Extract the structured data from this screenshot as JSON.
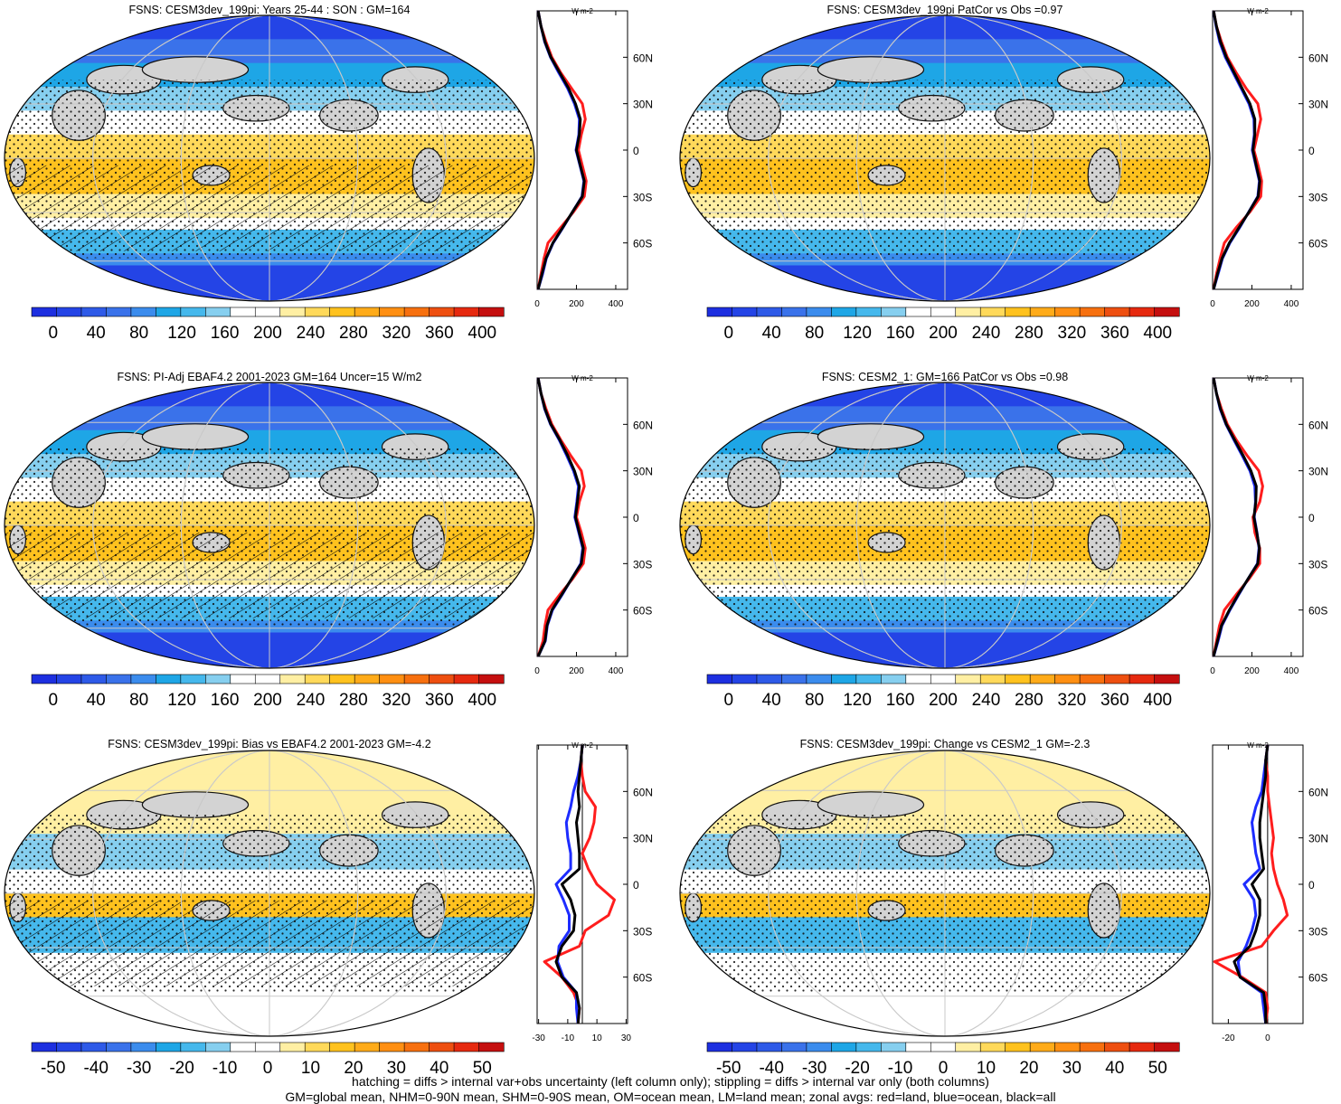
{
  "legend_colors": [
    "#1d2fe0",
    "#2444e6",
    "#2e5ae8",
    "#3a72ea",
    "#3b8ced",
    "#1ea6e6",
    "#45b8ec",
    "#86cfef",
    "#ffffff",
    "#ffffff",
    "#ffefa3",
    "#ffd95a",
    "#ffc21e",
    "#ffab19",
    "#ff8f12",
    "#f7700f",
    "#ee4f10",
    "#e6290f",
    "#c50f0f"
  ],
  "footer": {
    "line1": "hatching = diffs > internal var+obs uncertainty (left column only); stippling = diffs > internal var only (both columns)",
    "line2": "GM=global mean, NHM=0-90N mean, SHM=0-90S mean, OM=ocean mean, LM=land mean; zonal avgs: red=land, blue=ocean, black=all"
  },
  "chart_data": [
    {
      "type": "heatmap",
      "title": "FSNS: CESM3dev_199pi: Years 25-44 : SON : GM=164",
      "colorbar_ticks": [
        "0",
        "40",
        "80",
        "120",
        "160",
        "200",
        "240",
        "280",
        "320",
        "360",
        "400"
      ],
      "colorbar_range": [
        -20,
        420
      ],
      "hatching": true,
      "zonal_profile": {
        "unit_label": "W m-2",
        "xlim": [
          0,
          460
        ],
        "xticks": [
          "0",
          "200",
          "400"
        ],
        "lat_ticks": [
          "60N",
          "30N",
          "0",
          "30S",
          "60S"
        ],
        "lat": [
          -90,
          -80,
          -70,
          -60,
          -50,
          -40,
          -30,
          -20,
          -10,
          0,
          10,
          20,
          30,
          40,
          50,
          60,
          70,
          80,
          90
        ],
        "all": [
          5,
          25,
          45,
          80,
          130,
          180,
          230,
          240,
          220,
          200,
          215,
          220,
          195,
          160,
          115,
          70,
          40,
          20,
          5
        ],
        "land": [
          5,
          20,
          35,
          55,
          120,
          185,
          240,
          250,
          230,
          210,
          225,
          245,
          230,
          175,
          120,
          75,
          45,
          20,
          5
        ],
        "ocean": [
          5,
          28,
          47,
          82,
          132,
          180,
          228,
          238,
          218,
          198,
          212,
          215,
          190,
          155,
          110,
          68,
          38,
          20,
          5
        ]
      }
    },
    {
      "type": "heatmap",
      "title": "FSNS: CESM3dev_199pi PatCor vs Obs =0.97",
      "colorbar_ticks": [
        "0",
        "40",
        "80",
        "120",
        "160",
        "200",
        "240",
        "280",
        "320",
        "360",
        "400"
      ],
      "colorbar_range": [
        -20,
        420
      ],
      "hatching": false,
      "zonal_profile": {
        "unit_label": "W m-2",
        "xlim": [
          0,
          460
        ],
        "xticks": [
          "0",
          "200",
          "400"
        ],
        "lat_ticks": [
          "60N",
          "30N",
          "0",
          "30S",
          "60S"
        ],
        "lat": [
          -90,
          -80,
          -70,
          -60,
          -50,
          -40,
          -30,
          -20,
          -10,
          0,
          10,
          20,
          30,
          40,
          50,
          60,
          70,
          80,
          90
        ],
        "all": [
          5,
          25,
          48,
          85,
          135,
          185,
          232,
          240,
          222,
          205,
          215,
          215,
          190,
          150,
          110,
          70,
          40,
          20,
          5
        ],
        "land": [
          5,
          20,
          38,
          60,
          120,
          190,
          245,
          250,
          232,
          210,
          228,
          245,
          230,
          170,
          120,
          75,
          45,
          20,
          5
        ],
        "ocean": [
          5,
          28,
          50,
          88,
          138,
          184,
          230,
          238,
          220,
          202,
          212,
          210,
          185,
          145,
          105,
          65,
          36,
          18,
          5
        ]
      }
    },
    {
      "type": "heatmap",
      "title": "FSNS: PI-Adj EBAF4.2 2001-2023 GM=164 Uncer=15 W/m2",
      "colorbar_ticks": [
        "0",
        "40",
        "80",
        "120",
        "160",
        "200",
        "240",
        "280",
        "320",
        "360",
        "400"
      ],
      "colorbar_range": [
        -20,
        420
      ],
      "hatching": true,
      "zonal_profile": {
        "unit_label": "W m-2",
        "xlim": [
          0,
          460
        ],
        "xticks": [
          "0",
          "200",
          "400"
        ],
        "lat_ticks": [
          "60N",
          "30N",
          "0",
          "30S",
          "60S"
        ],
        "lat": [
          -90,
          -80,
          -70,
          -60,
          -50,
          -40,
          -30,
          -20,
          -10,
          0,
          10,
          20,
          30,
          40,
          50,
          60,
          70,
          80,
          90
        ],
        "all": [
          5,
          40,
          50,
          75,
          125,
          175,
          225,
          235,
          215,
          195,
          205,
          215,
          190,
          155,
          115,
          70,
          40,
          20,
          5
        ],
        "land": [
          5,
          30,
          40,
          55,
          115,
          180,
          235,
          245,
          225,
          200,
          215,
          240,
          225,
          170,
          120,
          75,
          45,
          20,
          5
        ],
        "ocean": [
          5,
          42,
          52,
          78,
          128,
          175,
          222,
          232,
          212,
          192,
          202,
          210,
          185,
          150,
          112,
          68,
          38,
          20,
          5
        ]
      }
    },
    {
      "type": "heatmap",
      "title": "FSNS: CESM2_1: GM=166 PatCor vs Obs =0.98",
      "colorbar_ticks": [
        "0",
        "40",
        "80",
        "120",
        "160",
        "200",
        "240",
        "280",
        "320",
        "360",
        "400"
      ],
      "colorbar_range": [
        -20,
        420
      ],
      "hatching": false,
      "zonal_profile": {
        "unit_label": "W m-2",
        "xlim": [
          0,
          460
        ],
        "xticks": [
          "0",
          "200",
          "400"
        ],
        "lat_ticks": [
          "60N",
          "30N",
          "0",
          "30S",
          "60S"
        ],
        "lat": [
          -90,
          -80,
          -70,
          -60,
          -50,
          -40,
          -30,
          -20,
          -10,
          0,
          10,
          20,
          30,
          40,
          50,
          60,
          70,
          80,
          90
        ],
        "all": [
          5,
          25,
          45,
          85,
          130,
          180,
          230,
          238,
          225,
          210,
          220,
          222,
          195,
          155,
          112,
          70,
          40,
          20,
          5
        ],
        "land": [
          5,
          20,
          35,
          60,
          120,
          185,
          240,
          240,
          215,
          205,
          240,
          255,
          235,
          175,
          120,
          75,
          45,
          20,
          5
        ],
        "ocean": [
          5,
          28,
          48,
          88,
          133,
          180,
          228,
          236,
          226,
          212,
          218,
          215,
          190,
          150,
          108,
          68,
          38,
          20,
          5
        ]
      }
    },
    {
      "type": "heatmap",
      "title": "FSNS: CESM3dev_199pi: Bias vs EBAF4.2 2001-2023  GM=-4.2",
      "colorbar_ticks": [
        "-50",
        "-40",
        "-30",
        "-20",
        "-10",
        "0",
        "10",
        "20",
        "30",
        "40",
        "50"
      ],
      "colorbar_range": [
        -55,
        55
      ],
      "hatching": true,
      "zonal_profile": {
        "unit_label": "W m-2",
        "xlim": [
          -31,
          31
        ],
        "xticks": [
          "-30",
          "-10",
          "10",
          "30"
        ],
        "lat_ticks": [
          "60N",
          "30N",
          "0",
          "30S",
          "60S"
        ],
        "lat": [
          -90,
          -80,
          -70,
          -60,
          -50,
          -40,
          -30,
          -20,
          -10,
          0,
          10,
          20,
          30,
          40,
          50,
          60,
          70,
          80,
          90
        ],
        "all": [
          -3,
          -2,
          -4,
          -14,
          -18,
          -14,
          -6,
          -5,
          -8,
          -14,
          -2,
          -2,
          -3,
          -4,
          -2,
          -3,
          -2,
          -1,
          0
        ],
        "land": [
          -3,
          -2,
          -6,
          -14,
          -26,
          -2,
          2,
          18,
          22,
          10,
          4,
          0,
          5,
          8,
          9,
          2,
          0,
          -1,
          0
        ],
        "ocean": [
          -3,
          -4,
          -4,
          -13,
          -17,
          -16,
          -9,
          -9,
          -13,
          -18,
          -8,
          -8,
          -10,
          -11,
          -8,
          -6,
          -3,
          -1,
          0
        ]
      }
    },
    {
      "type": "heatmap",
      "title": "FSNS: CESM3dev_199pi: Change vs CESM2_1 GM=-2.3",
      "colorbar_ticks": [
        "-50",
        "-40",
        "-30",
        "-20",
        "-10",
        "0",
        "10",
        "20",
        "30",
        "40",
        "50"
      ],
      "colorbar_range": [
        -55,
        55
      ],
      "hatching": false,
      "zonal_profile": {
        "unit_label": "W m-2",
        "xlim": [
          -28,
          18
        ],
        "xticks": [
          "-20",
          "0"
        ],
        "lat_ticks": [
          "60N",
          "30N",
          "0",
          "30S",
          "60S"
        ],
        "lat": [
          -90,
          -80,
          -70,
          -60,
          -50,
          -40,
          -30,
          -20,
          -10,
          0,
          10,
          20,
          30,
          40,
          50,
          60,
          70,
          80,
          90
        ],
        "all": [
          -1,
          -1,
          -2,
          -14,
          -17,
          -9,
          -6,
          -4,
          -4,
          -8,
          -2,
          -3,
          -4,
          -4,
          -3,
          -2,
          -1,
          -1,
          0
        ],
        "land": [
          -1,
          0,
          -1,
          -13,
          -27,
          -3,
          3,
          10,
          8,
          5,
          3,
          2,
          3,
          2,
          1,
          0,
          0,
          -1,
          0
        ],
        "ocean": [
          -1,
          -2,
          -3,
          -14,
          -15,
          -11,
          -8,
          -6,
          -7,
          -12,
          -4,
          -6,
          -7,
          -8,
          -6,
          -3,
          -2,
          -1,
          0
        ]
      }
    }
  ]
}
